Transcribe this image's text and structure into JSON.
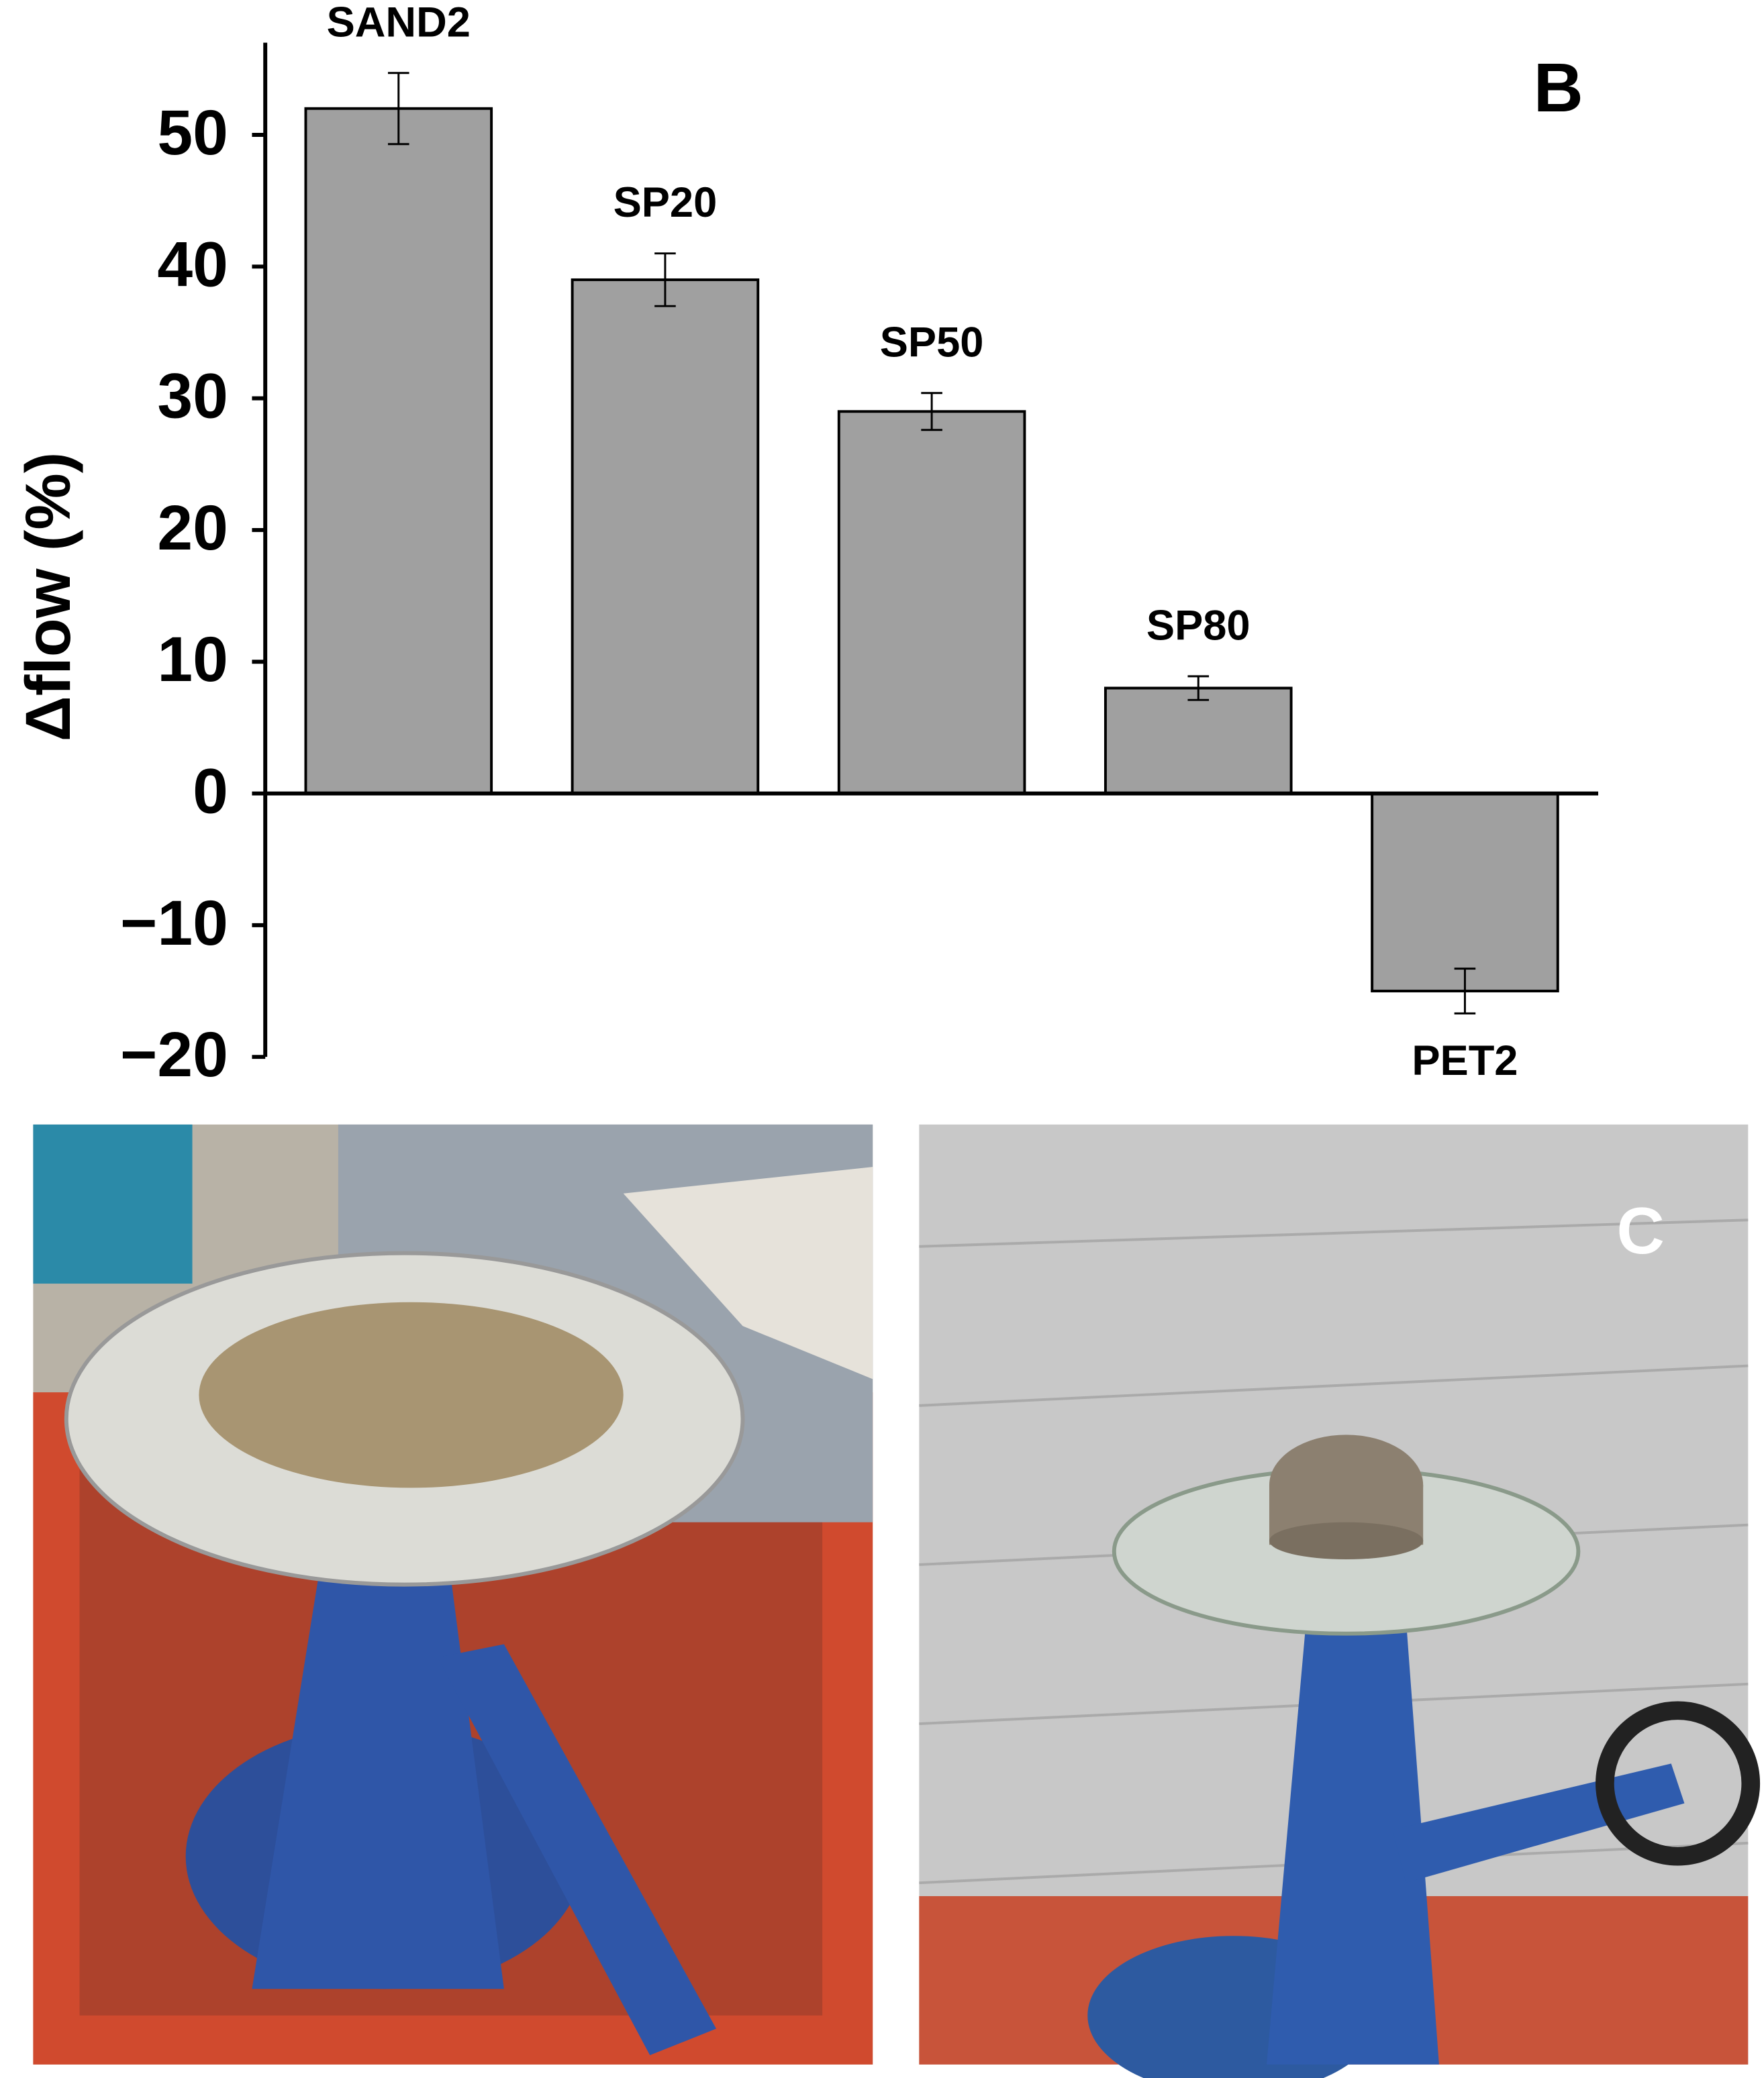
{
  "chart_data": {
    "type": "bar",
    "panel_label": "B",
    "ylabel": "Δflow (%)",
    "categories": [
      "SAND2",
      "SP20",
      "SP50",
      "SP80",
      "PET2"
    ],
    "values": [
      52,
      39,
      29,
      8,
      -15
    ],
    "errors": [
      2.7,
      2,
      1.4,
      0.9,
      1.7
    ],
    "color": "#a0a0a0",
    "ylim": [
      -20,
      57
    ],
    "yticks": [
      {
        "value": -20,
        "label": "−20"
      },
      {
        "value": -10,
        "label": "−10"
      },
      0,
      10,
      20,
      30,
      40,
      50
    ],
    "grid": false
  },
  "photo_c_label": "C"
}
